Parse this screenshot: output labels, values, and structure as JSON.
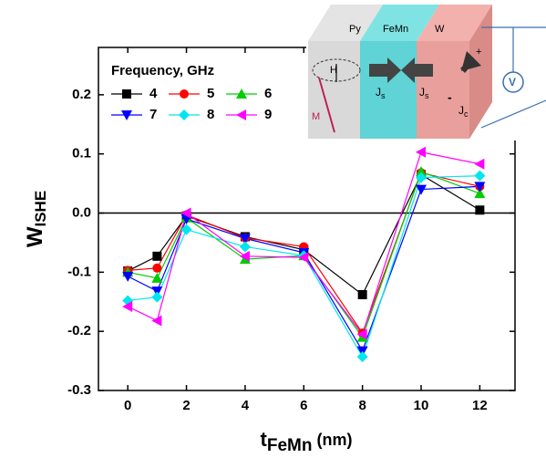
{
  "chart_data": {
    "type": "line",
    "y_label": "W",
    "y_label_subscript": "ISHE",
    "x_label": "t",
    "x_label_subscript": "FeMn",
    "x_label_suffix": "(nm)",
    "legend_title": "Frequency, GHz",
    "x": [
      0,
      1,
      2,
      4,
      6,
      8,
      10,
      12
    ],
    "series": [
      {
        "name": "4",
        "color": "#000000",
        "marker": "square",
        "values": [
          -0.098,
          -0.073,
          -0.005,
          -0.04,
          -0.062,
          -0.138,
          0.065,
          0.005
        ]
      },
      {
        "name": "5",
        "color": "#ff0000",
        "marker": "circle",
        "values": [
          -0.097,
          -0.093,
          -0.003,
          -0.042,
          -0.057,
          -0.203,
          0.068,
          0.045
        ]
      },
      {
        "name": "6",
        "color": "#00cc00",
        "marker": "triangle-up",
        "values": [
          -0.1,
          -0.11,
          -0.008,
          -0.078,
          -0.072,
          -0.21,
          0.07,
          0.033
        ]
      },
      {
        "name": "7",
        "color": "#0000ff",
        "marker": "triangle-down",
        "values": [
          -0.107,
          -0.132,
          -0.01,
          -0.043,
          -0.067,
          -0.233,
          0.04,
          0.045
        ]
      },
      {
        "name": "8",
        "color": "#00e5ee",
        "marker": "diamond",
        "values": [
          -0.148,
          -0.142,
          -0.028,
          -0.057,
          -0.072,
          -0.243,
          0.06,
          0.063
        ]
      },
      {
        "name": "9",
        "color": "#ff00ff",
        "marker": "triangle-left",
        "values": [
          -0.158,
          -0.182,
          0.0,
          -0.073,
          -0.075,
          -0.205,
          0.103,
          0.083
        ]
      }
    ],
    "xlim": [
      -1,
      13.2
    ],
    "ylim": [
      -0.3,
      0.28
    ],
    "xticks": [
      0,
      2,
      4,
      6,
      8,
      10,
      12
    ],
    "yticks": [
      -0.3,
      -0.2,
      -0.1,
      {
        "value": 0,
        "label": "0.0"
      },
      0.1,
      0.2
    ]
  },
  "inset": {
    "py": "Py",
    "femn": "FeMn",
    "w": "W",
    "h": "H",
    "m": "M",
    "js1": {
      "main": "J",
      "sub": "s"
    },
    "js2": {
      "main": "J",
      "sub": "s"
    },
    "jc": {
      "main": "J",
      "sub": "c"
    },
    "v": "V",
    "plus": "+",
    "minus": "-"
  }
}
